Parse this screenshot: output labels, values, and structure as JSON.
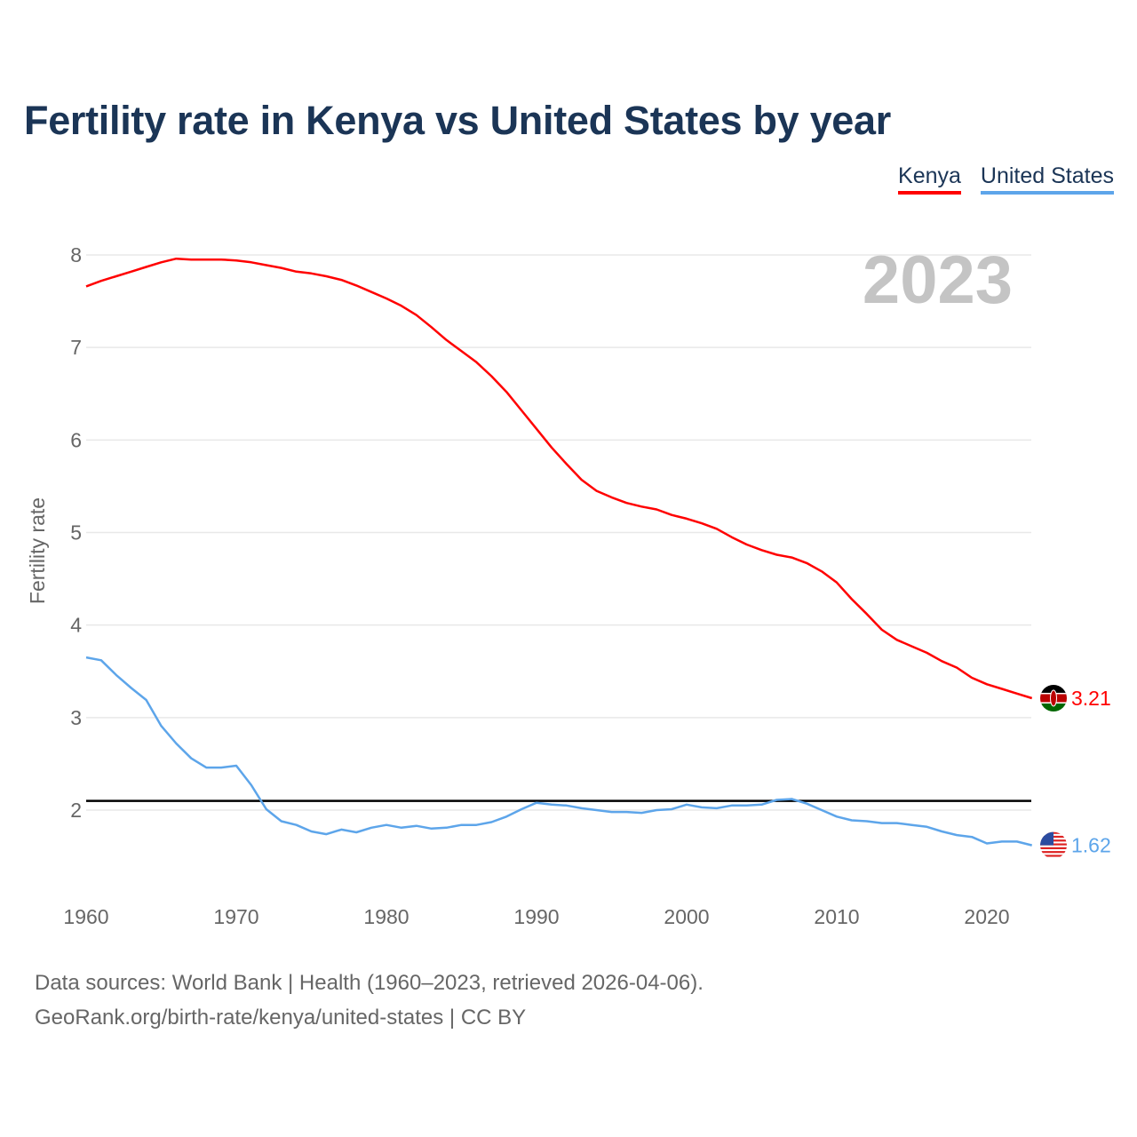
{
  "chart_data": {
    "type": "line",
    "title": "Fertility rate in Kenya vs United States by year",
    "ylabel": "Fertility rate",
    "xlabel": "",
    "xlim": [
      1960,
      2023
    ],
    "ylim": [
      1.0,
      8.3
    ],
    "yticks": [
      "2",
      "3",
      "4",
      "5",
      "6",
      "7",
      "8"
    ],
    "xticks": [
      "1960",
      "1970",
      "1980",
      "1990",
      "2000",
      "2010",
      "2020"
    ],
    "grid": true,
    "legend_placement": "top-right",
    "year_watermark": "2023",
    "reference_line": {
      "value": 2.1,
      "color": "#000000"
    },
    "x": [
      1960,
      1961,
      1962,
      1963,
      1964,
      1965,
      1966,
      1967,
      1968,
      1969,
      1970,
      1971,
      1972,
      1973,
      1974,
      1975,
      1976,
      1977,
      1978,
      1979,
      1980,
      1981,
      1982,
      1983,
      1984,
      1985,
      1986,
      1987,
      1988,
      1989,
      1990,
      1991,
      1992,
      1993,
      1994,
      1995,
      1996,
      1997,
      1998,
      1999,
      2000,
      2001,
      2002,
      2003,
      2004,
      2005,
      2006,
      2007,
      2008,
      2009,
      2010,
      2011,
      2012,
      2013,
      2014,
      2015,
      2016,
      2017,
      2018,
      2019,
      2020,
      2021,
      2022,
      2023
    ],
    "series": [
      {
        "name": "Kenya",
        "color": "#ff0000",
        "end_label": "3.21",
        "values": [
          7.66,
          7.72,
          7.77,
          7.82,
          7.87,
          7.92,
          7.96,
          7.95,
          7.95,
          7.95,
          7.94,
          7.92,
          7.89,
          7.86,
          7.82,
          7.8,
          7.77,
          7.73,
          7.67,
          7.6,
          7.53,
          7.45,
          7.35,
          7.22,
          7.08,
          6.96,
          6.84,
          6.69,
          6.52,
          6.32,
          6.12,
          5.92,
          5.74,
          5.57,
          5.45,
          5.38,
          5.32,
          5.28,
          5.25,
          5.19,
          5.15,
          5.1,
          5.04,
          4.95,
          4.87,
          4.81,
          4.76,
          4.73,
          4.67,
          4.58,
          4.46,
          4.28,
          4.12,
          3.95,
          3.84,
          3.77,
          3.7,
          3.61,
          3.54,
          3.43,
          3.36,
          3.31,
          3.26,
          3.21
        ]
      },
      {
        "name": "United States",
        "color": "#5da5ea",
        "end_label": "1.62",
        "values": [
          3.65,
          3.62,
          3.46,
          3.32,
          3.19,
          2.91,
          2.72,
          2.56,
          2.46,
          2.46,
          2.48,
          2.27,
          2.01,
          1.88,
          1.84,
          1.77,
          1.74,
          1.79,
          1.76,
          1.81,
          1.84,
          1.81,
          1.83,
          1.8,
          1.81,
          1.84,
          1.84,
          1.87,
          1.93,
          2.01,
          2.08,
          2.06,
          2.05,
          2.02,
          2.0,
          1.98,
          1.98,
          1.97,
          2.0,
          2.01,
          2.06,
          2.03,
          2.02,
          2.05,
          2.05,
          2.06,
          2.11,
          2.12,
          2.07,
          2.0,
          1.93,
          1.89,
          1.88,
          1.86,
          1.86,
          1.84,
          1.82,
          1.77,
          1.73,
          1.71,
          1.64,
          1.66,
          1.66,
          1.62
        ]
      }
    ]
  },
  "footer": {
    "line1": "Data sources: World Bank | Health (1960–2023, retrieved 2026-04-06).",
    "line2": "GeoRank.org/birth-rate/kenya/united-states | CC BY"
  }
}
